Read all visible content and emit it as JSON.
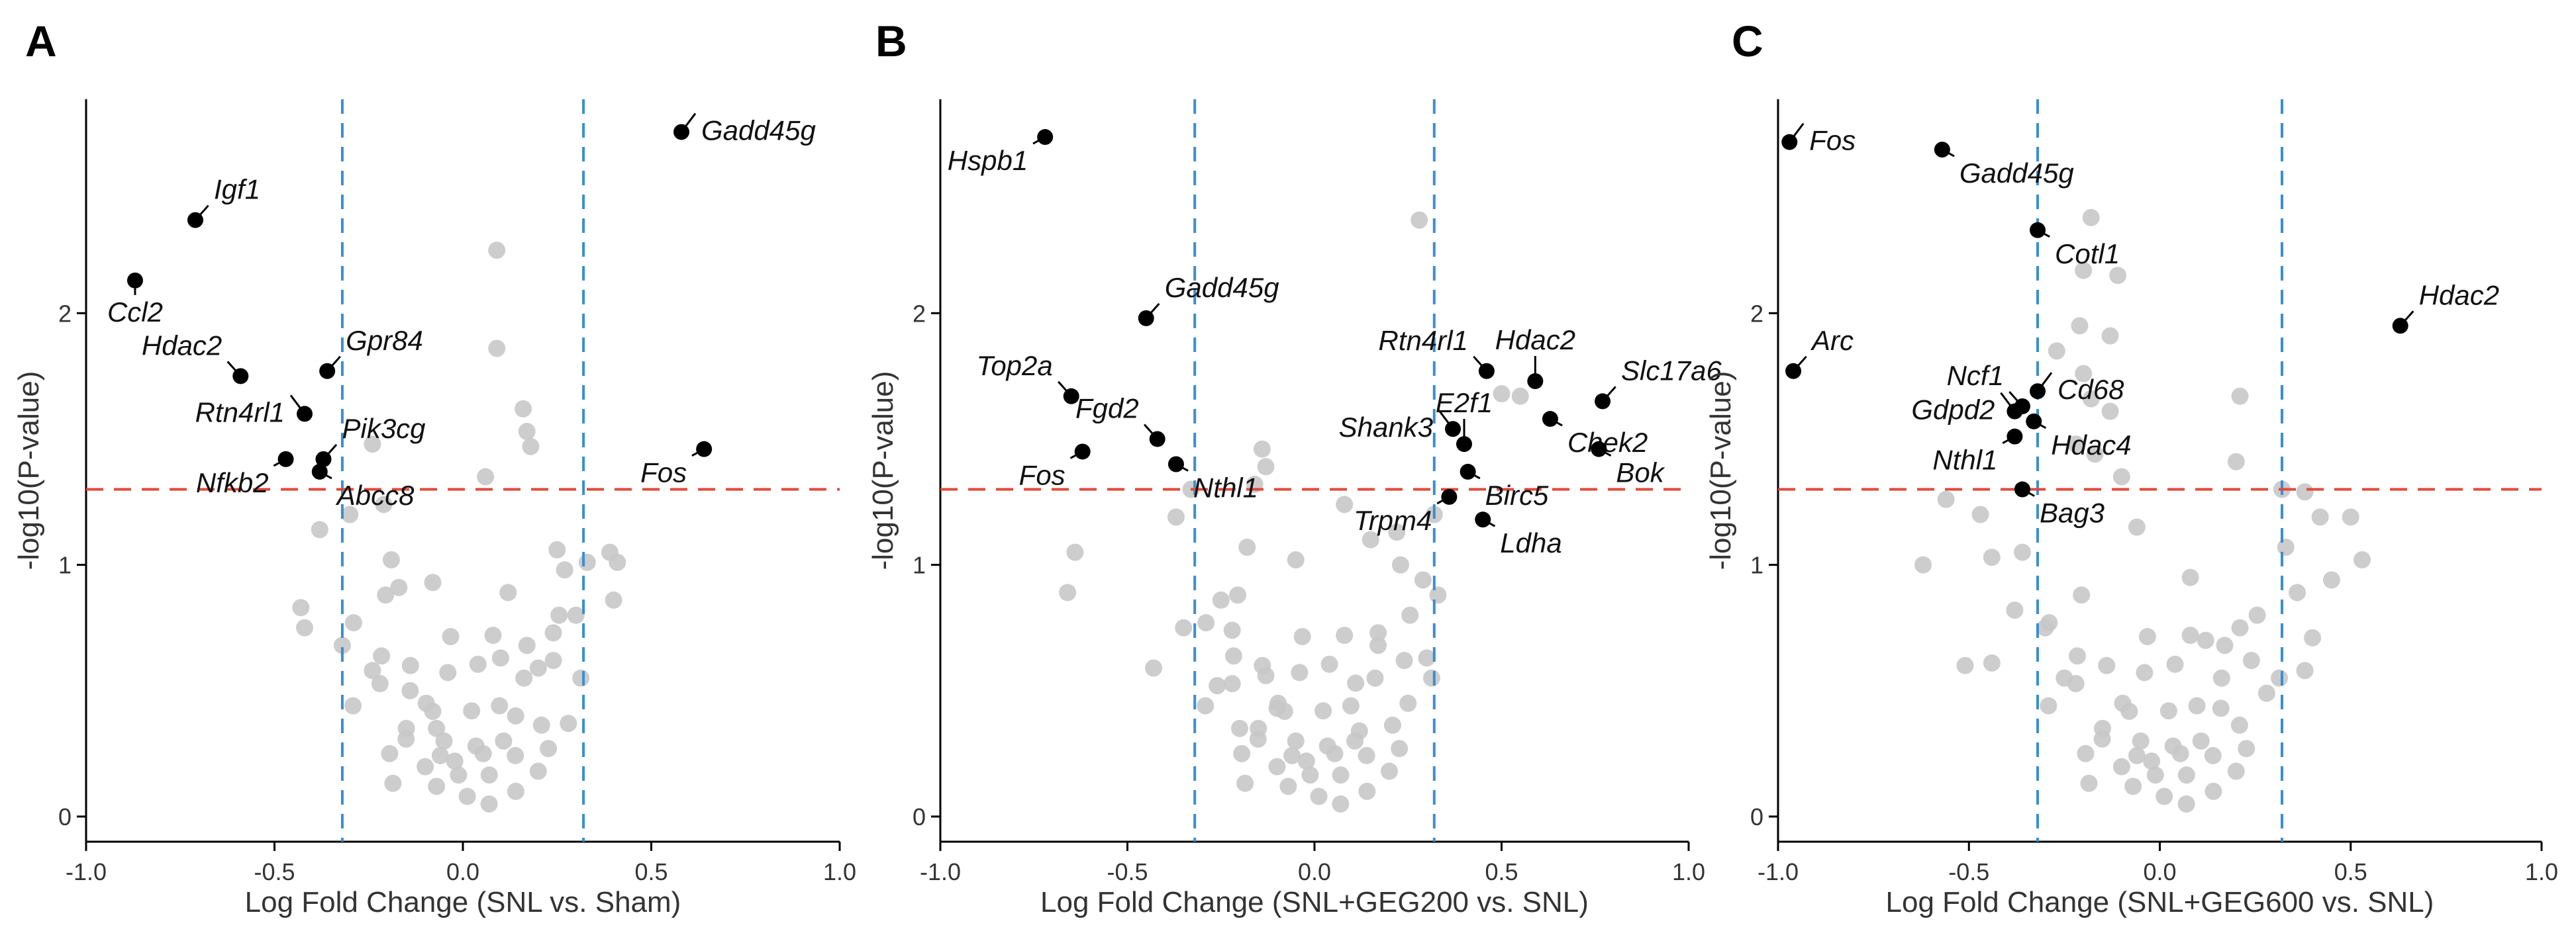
{
  "chart_data": [
    {
      "type": "scatter",
      "panel": "A",
      "xlabel": "Log Fold Change (SNL vs. Sham)",
      "ylabel": "-log10(P-value)",
      "xlim": [
        -1.0,
        1.0
      ],
      "ylim": [
        -0.1,
        2.85
      ],
      "xticks": [
        -1.0,
        -0.5,
        0.0,
        0.5,
        1.0
      ],
      "xtick_labels": [
        "-1.0",
        "-0.5",
        "0.0",
        "0.5",
        "1.0"
      ],
      "yticks": [
        0,
        1,
        2
      ],
      "ytick_labels": [
        "0",
        "1",
        "2"
      ],
      "fc_threshold": 0.32,
      "p_threshold": 1.3,
      "colors": {
        "significant": "#000000",
        "background": "#c8c8c8",
        "fc_line": "#3a8fd0",
        "p_line": "#e04a3a"
      },
      "labeled_points": [
        {
          "gene": "Gadd45g",
          "x": 0.58,
          "y": 2.72,
          "label_dir": "e"
        },
        {
          "gene": "Igf1",
          "x": -0.71,
          "y": 2.37,
          "label_dir": "ne"
        },
        {
          "gene": "Ccl2",
          "x": -0.87,
          "y": 2.13,
          "label_dir": "s"
        },
        {
          "gene": "Hdac2",
          "x": -0.59,
          "y": 1.75,
          "label_dir": "nw"
        },
        {
          "gene": "Gpr84",
          "x": -0.36,
          "y": 1.77,
          "label_dir": "ne"
        },
        {
          "gene": "Rtn4rl1",
          "x": -0.42,
          "y": 1.6,
          "label_dir": "w"
        },
        {
          "gene": "Pik3cg",
          "x": -0.37,
          "y": 1.42,
          "label_dir": "ne"
        },
        {
          "gene": "Nfkb2",
          "x": -0.47,
          "y": 1.42,
          "label_dir": "sw"
        },
        {
          "gene": "Abcc8",
          "x": -0.38,
          "y": 1.37,
          "label_dir": "se"
        },
        {
          "gene": "Fos",
          "x": 0.64,
          "y": 1.46,
          "label_dir": "sw"
        }
      ],
      "background_points": [
        {
          "x": -0.24,
          "y": 1.48
        },
        {
          "x": -0.19,
          "y": 1.02
        },
        {
          "x": 0.09,
          "y": 2.25
        },
        {
          "x": 0.09,
          "y": 1.86
        },
        {
          "x": 0.16,
          "y": 1.62
        },
        {
          "x": 0.17,
          "y": 1.53
        },
        {
          "x": 0.18,
          "y": 1.47
        },
        {
          "x": 0.06,
          "y": 1.35
        },
        {
          "x": 0.25,
          "y": 1.06
        },
        {
          "x": 0.27,
          "y": 0.98
        },
        {
          "x": 0.39,
          "y": 1.05
        },
        {
          "x": 0.41,
          "y": 1.01
        },
        {
          "x": 0.4,
          "y": 0.86
        },
        {
          "x": 0.33,
          "y": 1.01
        },
        {
          "x": -0.38,
          "y": 1.14
        },
        {
          "x": -0.3,
          "y": 1.2
        },
        {
          "x": -0.21,
          "y": 1.24
        },
        {
          "x": -0.17,
          "y": 0.91
        },
        {
          "x": -0.08,
          "y": 0.93
        },
        {
          "x": 0.12,
          "y": 0.89
        },
        {
          "x": -0.43,
          "y": 0.83
        },
        {
          "x": -0.42,
          "y": 0.75
        },
        {
          "x": -0.32,
          "y": 0.68
        },
        {
          "x": -0.24,
          "y": 0.58
        },
        {
          "x": -0.14,
          "y": 0.5
        },
        {
          "x": -0.07,
          "y": 0.35
        },
        {
          "x": 0.14,
          "y": 0.4
        },
        {
          "x": 0.2,
          "y": 0.59
        },
        {
          "x": 0.24,
          "y": 0.73
        },
        {
          "x": 0.3,
          "y": 0.8
        },
        {
          "x": 0.28,
          "y": 0.37
        },
        {
          "x": 0.1,
          "y": 0.63
        }
      ]
    },
    {
      "type": "scatter",
      "panel": "B",
      "xlabel": "Log Fold Change (SNL+GEG200 vs. SNL)",
      "ylabel": "-log10(P-value)",
      "xlim": [
        -1.0,
        1.0
      ],
      "ylim": [
        -0.1,
        2.85
      ],
      "xticks": [
        -1.0,
        -0.5,
        0.0,
        0.5,
        1.0
      ],
      "xtick_labels": [
        "-1.0",
        "-0.5",
        "0.0",
        "0.5",
        "1.0"
      ],
      "yticks": [
        0,
        1,
        2
      ],
      "ytick_labels": [
        "0",
        "1",
        "2"
      ],
      "fc_threshold": 0.32,
      "p_threshold": 1.3,
      "colors": {
        "significant": "#000000",
        "background": "#c8c8c8",
        "fc_line": "#3a8fd0",
        "p_line": "#e04a3a"
      },
      "labeled_points": [
        {
          "gene": "Hspb1",
          "x": -0.72,
          "y": 2.7,
          "label_dir": "sw"
        },
        {
          "gene": "Gadd45g",
          "x": -0.45,
          "y": 1.98,
          "label_dir": "ne"
        },
        {
          "gene": "Top2a",
          "x": -0.65,
          "y": 1.67,
          "label_dir": "nw"
        },
        {
          "gene": "Fgd2",
          "x": -0.42,
          "y": 1.5,
          "label_dir": "nw"
        },
        {
          "gene": "Fos",
          "x": -0.62,
          "y": 1.45,
          "label_dir": "sw"
        },
        {
          "gene": "Nthl1",
          "x": -0.37,
          "y": 1.4,
          "label_dir": "se"
        },
        {
          "gene": "Hdac2",
          "x": 0.59,
          "y": 1.73,
          "label_dir": "n"
        },
        {
          "gene": "Rtn4rl1",
          "x": 0.46,
          "y": 1.77,
          "label_dir": "nw"
        },
        {
          "gene": "Slc17a6",
          "x": 0.77,
          "y": 1.65,
          "label_dir": "ne"
        },
        {
          "gene": "Chek2",
          "x": 0.63,
          "y": 1.58,
          "label_dir": "se"
        },
        {
          "gene": "Shank3",
          "x": 0.37,
          "y": 1.54,
          "label_dir": "w"
        },
        {
          "gene": "E2f1",
          "x": 0.4,
          "y": 1.48,
          "label_dir": "n"
        },
        {
          "gene": "Birc5",
          "x": 0.41,
          "y": 1.37,
          "label_dir": "se"
        },
        {
          "gene": "Trpm4",
          "x": 0.36,
          "y": 1.27,
          "label_dir": "sw"
        },
        {
          "gene": "Ldha",
          "x": 0.45,
          "y": 1.18,
          "label_dir": "se"
        },
        {
          "gene": "Bok",
          "x": 0.76,
          "y": 1.46,
          "label_dir": "se"
        }
      ],
      "background_points": [
        {
          "x": 0.28,
          "y": 2.37
        },
        {
          "x": 0.5,
          "y": 1.68
        },
        {
          "x": 0.55,
          "y": 1.67
        },
        {
          "x": -0.14,
          "y": 1.46
        },
        {
          "x": -0.13,
          "y": 1.39
        },
        {
          "x": -0.16,
          "y": 1.32
        },
        {
          "x": -0.33,
          "y": 1.3
        },
        {
          "x": -0.37,
          "y": 1.19
        },
        {
          "x": -0.64,
          "y": 1.05
        },
        {
          "x": -0.66,
          "y": 0.89
        },
        {
          "x": -0.43,
          "y": 0.59
        },
        {
          "x": 0.08,
          "y": 1.24
        },
        {
          "x": 0.15,
          "y": 1.1
        },
        {
          "x": 0.22,
          "y": 1.13
        },
        {
          "x": 0.23,
          "y": 1.0
        },
        {
          "x": 0.29,
          "y": 0.94
        },
        {
          "x": 0.33,
          "y": 0.88
        },
        {
          "x": -0.05,
          "y": 1.02
        },
        {
          "x": -0.18,
          "y": 1.07
        },
        {
          "x": -0.25,
          "y": 0.86
        },
        {
          "x": -0.22,
          "y": 0.74
        },
        {
          "x": -0.35,
          "y": 0.75
        },
        {
          "x": -0.26,
          "y": 0.52
        },
        {
          "x": -0.13,
          "y": 0.56
        },
        {
          "x": -0.1,
          "y": 0.43
        },
        {
          "x": 0.11,
          "y": 0.53
        },
        {
          "x": 0.17,
          "y": 0.73
        },
        {
          "x": 0.25,
          "y": 0.45
        },
        {
          "x": 0.3,
          "y": 0.63
        },
        {
          "x": 0.32,
          "y": 1.2
        },
        {
          "x": 0.12,
          "y": 0.34
        },
        {
          "x": -0.2,
          "y": 0.35
        }
      ]
    },
    {
      "type": "scatter",
      "panel": "C",
      "xlabel": "Log Fold Change (SNL+GEG600 vs. SNL)",
      "ylabel": "-log10(P-value)",
      "xlim": [
        -1.0,
        1.0
      ],
      "ylim": [
        -0.1,
        2.85
      ],
      "xticks": [
        -1.0,
        -0.5,
        0.0,
        0.5,
        1.0
      ],
      "xtick_labels": [
        "-1.0",
        "-0.5",
        "0.0",
        "0.5",
        "1.0"
      ],
      "yticks": [
        0,
        1,
        2
      ],
      "ytick_labels": [
        "0",
        "1",
        "2"
      ],
      "fc_threshold": 0.32,
      "p_threshold": 1.3,
      "colors": {
        "significant": "#000000",
        "background": "#c8c8c8",
        "fc_line": "#3a8fd0",
        "p_line": "#e04a3a"
      },
      "labeled_points": [
        {
          "gene": "Fos",
          "x": -0.97,
          "y": 2.68,
          "label_dir": "e"
        },
        {
          "gene": "Gadd45g",
          "x": -0.57,
          "y": 2.65,
          "label_dir": "se"
        },
        {
          "gene": "Cotl1",
          "x": -0.32,
          "y": 2.33,
          "label_dir": "se"
        },
        {
          "gene": "Hdac2",
          "x": 0.63,
          "y": 1.95,
          "label_dir": "ne"
        },
        {
          "gene": "Arc",
          "x": -0.96,
          "y": 1.77,
          "label_dir": "ne"
        },
        {
          "gene": "Ncf1",
          "x": -0.36,
          "y": 1.63,
          "label_dir": "nw"
        },
        {
          "gene": "Gdpd2",
          "x": -0.38,
          "y": 1.61,
          "label_dir": "w"
        },
        {
          "gene": "Cd68",
          "x": -0.32,
          "y": 1.69,
          "label_dir": "e"
        },
        {
          "gene": "Hdac4",
          "x": -0.33,
          "y": 1.57,
          "label_dir": "se"
        },
        {
          "gene": "Nthl1",
          "x": -0.38,
          "y": 1.51,
          "label_dir": "sw"
        },
        {
          "gene": "Bag3",
          "x": -0.36,
          "y": 1.3,
          "label_dir": "se"
        }
      ],
      "background_points": [
        {
          "x": -0.18,
          "y": 2.38
        },
        {
          "x": -0.2,
          "y": 2.17
        },
        {
          "x": -0.11,
          "y": 2.15
        },
        {
          "x": -0.21,
          "y": 1.95
        },
        {
          "x": -0.27,
          "y": 1.85
        },
        {
          "x": -0.13,
          "y": 1.91
        },
        {
          "x": -0.2,
          "y": 1.76
        },
        {
          "x": -0.18,
          "y": 1.66
        },
        {
          "x": -0.13,
          "y": 1.61
        },
        {
          "x": -0.22,
          "y": 1.48
        },
        {
          "x": -0.17,
          "y": 1.44
        },
        {
          "x": -0.1,
          "y": 1.35
        },
        {
          "x": 0.21,
          "y": 1.67
        },
        {
          "x": 0.2,
          "y": 1.41
        },
        {
          "x": 0.32,
          "y": 1.3
        },
        {
          "x": 0.38,
          "y": 1.29
        },
        {
          "x": 0.42,
          "y": 1.19
        },
        {
          "x": 0.5,
          "y": 1.19
        },
        {
          "x": 0.53,
          "y": 1.02
        },
        {
          "x": 0.45,
          "y": 0.94
        },
        {
          "x": 0.33,
          "y": 1.07
        },
        {
          "x": 0.36,
          "y": 0.89
        },
        {
          "x": 0.4,
          "y": 0.71
        },
        {
          "x": 0.38,
          "y": 0.58
        },
        {
          "x": -0.56,
          "y": 1.26
        },
        {
          "x": -0.62,
          "y": 1.0
        },
        {
          "x": -0.47,
          "y": 1.2
        },
        {
          "x": -0.44,
          "y": 1.03
        },
        {
          "x": -0.36,
          "y": 1.05
        },
        {
          "x": -0.38,
          "y": 0.82
        },
        {
          "x": -0.44,
          "y": 0.61
        },
        {
          "x": -0.51,
          "y": 0.6
        },
        {
          "x": -0.3,
          "y": 0.75
        },
        {
          "x": -0.25,
          "y": 0.55
        },
        {
          "x": 0.12,
          "y": 0.7
        },
        {
          "x": 0.16,
          "y": 0.43
        },
        {
          "x": 0.08,
          "y": 0.95
        },
        {
          "x": -0.06,
          "y": 1.15
        },
        {
          "x": 0.28,
          "y": 0.49
        },
        {
          "x": 0.21,
          "y": 0.75
        }
      ]
    }
  ]
}
